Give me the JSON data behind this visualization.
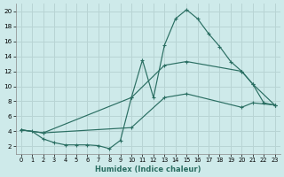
{
  "xlabel": "Humidex (Indice chaleur)",
  "bg_color": "#ceeaea",
  "grid_color": "#b8d4d4",
  "line_color": "#2a6e62",
  "xlim": [
    -0.5,
    23.5
  ],
  "ylim": [
    1,
    21
  ],
  "xticks": [
    0,
    1,
    2,
    3,
    4,
    5,
    6,
    7,
    8,
    9,
    10,
    11,
    12,
    13,
    14,
    15,
    16,
    17,
    18,
    19,
    20,
    21,
    22,
    23
  ],
  "yticks": [
    2,
    4,
    6,
    8,
    10,
    12,
    14,
    16,
    18,
    20
  ],
  "line1_x": [
    0,
    1,
    2,
    3,
    4,
    5,
    6,
    7,
    8,
    9,
    10,
    11,
    12,
    13,
    14,
    15,
    16,
    17,
    18,
    19,
    20,
    21,
    22,
    23
  ],
  "line1_y": [
    4.2,
    4.0,
    3.0,
    2.5,
    2.2,
    2.2,
    2.2,
    2.1,
    1.7,
    2.8,
    8.5,
    13.5,
    8.5,
    15.5,
    19.0,
    20.2,
    19.0,
    17.0,
    15.3,
    13.3,
    12.0,
    10.3,
    7.8,
    7.5
  ],
  "line2_x": [
    0,
    2,
    10,
    13,
    15,
    20,
    21,
    23
  ],
  "line2_y": [
    4.2,
    3.8,
    8.5,
    12.8,
    13.3,
    12.0,
    10.3,
    7.5
  ],
  "line3_x": [
    0,
    2,
    10,
    13,
    15,
    20,
    21,
    23
  ],
  "line3_y": [
    4.2,
    3.8,
    4.5,
    8.5,
    9.0,
    7.2,
    7.8,
    7.5
  ]
}
